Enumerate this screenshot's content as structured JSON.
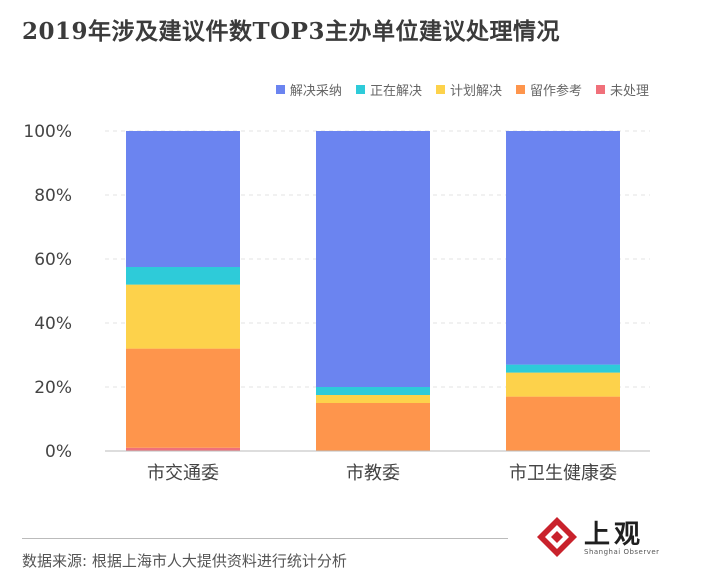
{
  "title": "2019年涉及建议件数TOP3主办单位建议处理情况",
  "source": "数据来源: 根据上海市人大提供资料进行统计分析",
  "logo": {
    "text": "上观",
    "subtext": "Shanghai Observer"
  },
  "colors": {
    "解决采纳": "#6b84f0",
    "正在解决": "#2ecbd9",
    "计划解决": "#fdd24b",
    "留作参考": "#fe954c",
    "未处理": "#f0707a"
  },
  "chart_data": {
    "type": "bar",
    "stacked": true,
    "categories": [
      "市交通委",
      "市教委",
      "市卫生健康委"
    ],
    "series": [
      {
        "name": "未处理",
        "values": [
          1,
          0,
          0
        ]
      },
      {
        "name": "留作参考",
        "values": [
          31,
          15,
          17
        ]
      },
      {
        "name": "计划解决",
        "values": [
          20,
          2.5,
          7.5
        ]
      },
      {
        "name": "正在解决",
        "values": [
          5.5,
          2.5,
          2.5
        ]
      },
      {
        "name": "解决采纳",
        "values": [
          42.5,
          80,
          73
        ]
      }
    ],
    "legend_order": [
      "解决采纳",
      "正在解决",
      "计划解决",
      "留作参考",
      "未处理"
    ],
    "yticks": [
      "0%",
      "20%",
      "40%",
      "60%",
      "80%",
      "100%"
    ],
    "ylim": [
      0,
      100
    ],
    "xlabel": "",
    "ylabel": "",
    "legend_position": "top-right",
    "grid": true
  }
}
